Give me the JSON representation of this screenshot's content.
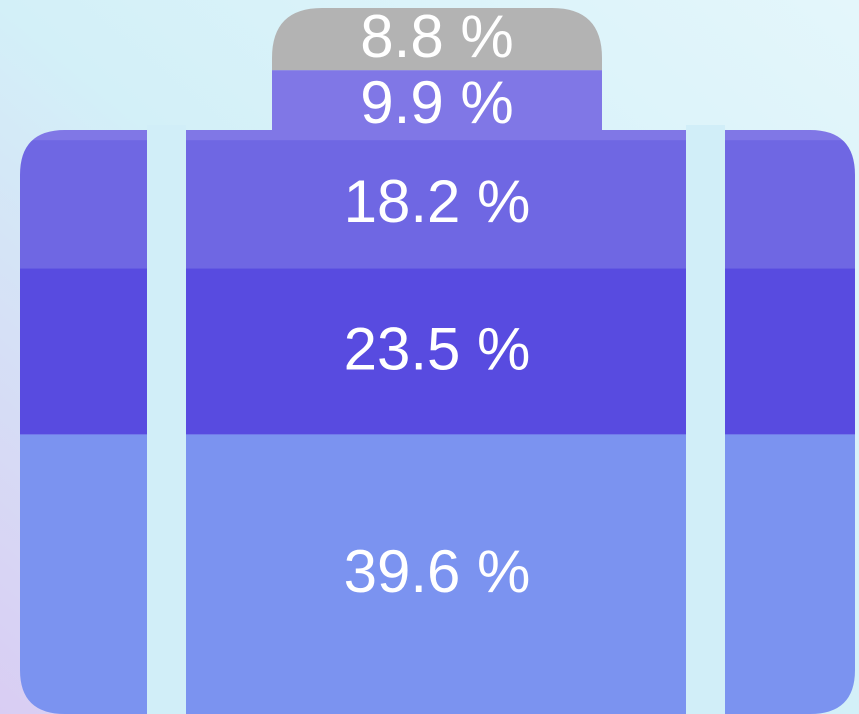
{
  "chart_data": {
    "type": "suitcase",
    "values": [
      8.8,
      9.9,
      18.2,
      23.5,
      39.6
    ],
    "value_labels": [
      "8.8 %",
      "9.9 %",
      "18.2 %",
      "23.5 %",
      "39.6 %"
    ],
    "colors": [
      "#b3b3b3",
      "#8077e6",
      "#6f67e3",
      "#584be0",
      "#7b93f0"
    ]
  }
}
